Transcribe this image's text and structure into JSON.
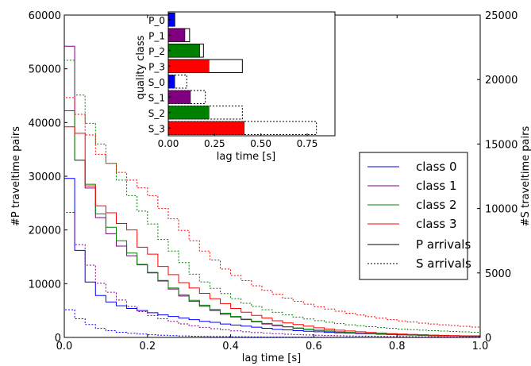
{
  "chart_data": [
    {
      "type": "line",
      "subtype": "step-histogram",
      "title": "",
      "xlabel": "lag time [s]",
      "ylabel_left": "#P traveltime pairs",
      "ylabel_right": "#S traveltime pairs",
      "xlim": [
        0.0,
        1.0
      ],
      "ylim_left": [
        0,
        60000
      ],
      "ylim_right": [
        0,
        25000
      ],
      "x_ticks": [
        "0.0",
        "0.2",
        "0.4",
        "0.6",
        "0.8",
        "1.0"
      ],
      "y_ticks_left": [
        "0",
        "10000",
        "20000",
        "30000",
        "40000",
        "50000",
        "60000"
      ],
      "y_ticks_right": [
        "0",
        "5000",
        "10000",
        "15000",
        "20000",
        "25000"
      ],
      "grid": false,
      "legend_position": "center-right",
      "legend": {
        "entries": [
          {
            "label": "class 0",
            "color": "#0000ff",
            "style": "solid"
          },
          {
            "label": "class 1",
            "color": "#800080",
            "style": "solid"
          },
          {
            "label": "class 2",
            "color": "#008000",
            "style": "solid"
          },
          {
            "label": "class 3",
            "color": "#ff0000",
            "style": "solid"
          },
          {
            "label": "P arrivals",
            "color": "#000000",
            "style": "solid"
          },
          {
            "label": "S arrivals",
            "color": "#000000",
            "style": "dotted"
          }
        ]
      },
      "bin_edges": [
        0.0,
        0.025,
        0.05,
        0.075,
        0.1,
        0.125,
        0.15,
        0.175,
        0.2,
        0.225,
        0.25,
        0.275,
        0.3,
        0.325,
        0.35,
        0.375,
        0.4,
        0.425,
        0.45,
        0.475,
        0.5,
        0.525,
        0.55,
        0.575,
        0.6,
        0.625,
        0.65,
        0.675,
        0.7,
        0.725,
        0.75,
        0.775,
        0.8,
        0.825,
        0.85,
        0.875,
        0.9,
        0.925,
        0.95,
        0.975,
        1.0
      ],
      "series": [
        {
          "name": "class 0",
          "arrival": "P",
          "axis": "left",
          "color": "#0000ff",
          "style": "solid",
          "values": [
            29600,
            16200,
            10300,
            7800,
            6600,
            5900,
            5400,
            5000,
            4600,
            4200,
            3900,
            3600,
            3300,
            3000,
            2800,
            2500,
            2300,
            2100,
            1900,
            1700,
            1500,
            1400,
            1250,
            1150,
            1050,
            950,
            850,
            800,
            720,
            660,
            600,
            550,
            500,
            460,
            420,
            380,
            350,
            320,
            300,
            280
          ]
        },
        {
          "name": "class 1",
          "arrival": "P",
          "axis": "left",
          "color": "#800080",
          "style": "solid",
          "values": [
            54200,
            33000,
            27800,
            22300,
            19300,
            17000,
            15200,
            13500,
            12000,
            10500,
            9000,
            7700,
            6700,
            5800,
            5000,
            4300,
            3800,
            3300,
            2900,
            2500,
            2200,
            1950,
            1700,
            1500,
            1300,
            1150,
            1000,
            900,
            800,
            700,
            620,
            550,
            480,
            430,
            380,
            340,
            300,
            270,
            240,
            220
          ]
        },
        {
          "name": "class 2",
          "arrival": "P",
          "axis": "left",
          "color": "#008000",
          "style": "solid",
          "values": [
            42200,
            33000,
            28500,
            23000,
            20500,
            18000,
            15700,
            13600,
            12100,
            10600,
            9200,
            7900,
            6900,
            6000,
            5200,
            4500,
            3900,
            3400,
            3000,
            2600,
            2300,
            2000,
            1750,
            1550,
            1350,
            1200,
            1050,
            930,
            820,
            720,
            640,
            570,
            500,
            450,
            400,
            360,
            320,
            290,
            260,
            240
          ]
        },
        {
          "name": "class 3",
          "arrival": "P",
          "axis": "left",
          "color": "#ff0000",
          "style": "solid",
          "values": [
            39200,
            38000,
            28200,
            24500,
            23200,
            21200,
            20000,
            16800,
            15500,
            13200,
            11700,
            10200,
            9200,
            8200,
            7200,
            6300,
            5400,
            4700,
            4100,
            3600,
            3100,
            2700,
            2400,
            2100,
            1800,
            1550,
            1350,
            1200,
            1050,
            920,
            800,
            700,
            620,
            550,
            490,
            430,
            380,
            340,
            300,
            270
          ]
        },
        {
          "name": "class 0",
          "arrival": "S",
          "axis": "right",
          "color": "#0000ff",
          "style": "dotted",
          "values": [
            2150,
            1450,
            1000,
            700,
            520,
            400,
            320,
            260,
            210,
            170,
            140,
            115,
            95,
            80,
            68,
            58,
            50,
            43,
            37,
            32,
            28,
            25,
            22,
            20,
            18,
            16,
            14,
            12,
            10,
            9,
            8,
            7,
            6,
            5,
            5,
            4,
            4,
            3,
            3,
            2
          ]
        },
        {
          "name": "class 1",
          "arrival": "S",
          "axis": "right",
          "color": "#800080",
          "style": "dotted",
          "values": [
            9700,
            7200,
            5600,
            4200,
            3500,
            2900,
            2400,
            2000,
            1700,
            1450,
            1250,
            1050,
            900,
            780,
            680,
            590,
            510,
            440,
            380,
            330,
            290,
            250,
            220,
            190,
            170,
            150,
            130,
            115,
            100,
            90,
            80,
            70,
            62,
            55,
            48,
            43,
            38,
            34,
            30,
            27
          ]
        },
        {
          "name": "class 2",
          "arrival": "S",
          "axis": "right",
          "color": "#008000",
          "style": "dotted",
          "values": [
            21500,
            18800,
            16600,
            15000,
            13500,
            12200,
            11000,
            9800,
            8800,
            7600,
            6700,
            5800,
            4900,
            4300,
            3800,
            3400,
            3000,
            2650,
            2400,
            2150,
            1950,
            1750,
            1580,
            1430,
            1300,
            1180,
            1070,
            980,
            900,
            830,
            760,
            700,
            650,
            600,
            560,
            520,
            490,
            460,
            430,
            400
          ]
        },
        {
          "name": "class 3",
          "arrival": "S",
          "axis": "right",
          "color": "#ff0000",
          "style": "dotted",
          "values": [
            18600,
            17300,
            15700,
            14200,
            13500,
            12800,
            12200,
            11600,
            11000,
            10000,
            9200,
            8300,
            7500,
            6700,
            6000,
            5300,
            4800,
            4400,
            4000,
            3650,
            3350,
            3050,
            2800,
            2580,
            2380,
            2200,
            2030,
            1880,
            1740,
            1610,
            1490,
            1380,
            1280,
            1190,
            1110,
            1040,
            980,
            920,
            860,
            800
          ]
        }
      ]
    },
    {
      "type": "bar",
      "orientation": "horizontal",
      "title": "",
      "xlabel": "lag time [s]",
      "ylabel": "quality class",
      "xlim": [
        0.0,
        0.9
      ],
      "x_ticks": [
        "0.00",
        "0.25",
        "0.50",
        "0.75"
      ],
      "categories": [
        "P_0",
        "P_1",
        "P_2",
        "P_3",
        "S_0",
        "S_1",
        "S_2",
        "S_3"
      ],
      "series": [
        {
          "name": "",
          "style": "filled",
          "values": [
            0.035,
            0.09,
            0.17,
            0.22,
            0.035,
            0.12,
            0.22,
            0.41
          ],
          "colors": [
            "#0000ff",
            "#800080",
            "#008000",
            "#ff0000",
            "#0000ff",
            "#800080",
            "#008000",
            "#ff0000"
          ]
        },
        {
          "name": "",
          "style": "outline",
          "values": [
            0.035,
            0.115,
            0.19,
            0.4,
            0.1,
            0.2,
            0.4,
            0.8
          ],
          "outline": [
            "solid",
            "solid",
            "solid",
            "solid",
            "dotted",
            "dotted",
            "dotted",
            "dotted"
          ]
        }
      ]
    }
  ]
}
